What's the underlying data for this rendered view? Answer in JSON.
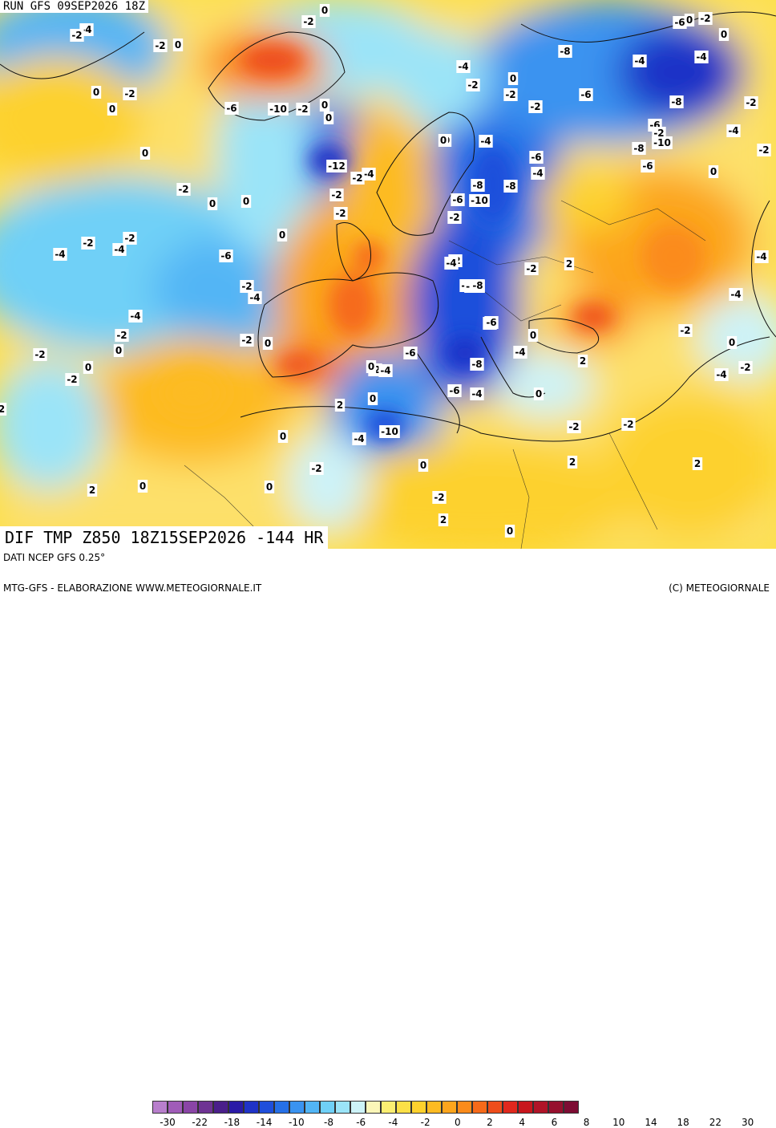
{
  "header": {
    "run_title": "RUN GFS 09SEP2026 18Z",
    "map_title": "DIF TMP Z850 18Z15SEP2026 -144 HR"
  },
  "footer": {
    "source_label": "DATI NCEP GFS 0.25°",
    "credit_left": "MTG-GFS - ELABORAZIONE WWW.METEOGIORNALE.IT",
    "credit_right": "(C) METEOGIORNALE"
  },
  "legend": {
    "colors": [
      "#b87fcc",
      "#a05cb8",
      "#8a45a6",
      "#6e3393",
      "#4a1f8a",
      "#2a1aa6",
      "#1f33c7",
      "#1f4fdb",
      "#2670e6",
      "#3a93f0",
      "#52b5f5",
      "#6fd0f7",
      "#9be4f8",
      "#cdf3f8",
      "#fbf6b8",
      "#fbee72",
      "#fce047",
      "#fdd12d",
      "#fdbb22",
      "#fca51d",
      "#fb8b1a",
      "#f66a1a",
      "#ee4d1b",
      "#e0281d",
      "#c8161d",
      "#b01428",
      "#96102e",
      "#7d0c33"
    ],
    "ticks": [
      "-30",
      "-22",
      "-18",
      "-14",
      "-10",
      "-8",
      "-6",
      "-4",
      "-2",
      "0",
      "2",
      "4",
      "6",
      "8",
      "10",
      "14",
      "18",
      "22",
      "30"
    ]
  },
  "map_labels": [
    {
      "t": "-4"
    },
    {
      "t": "-2"
    },
    {
      "t": "0"
    },
    {
      "t": "-2"
    },
    {
      "t": "0"
    },
    {
      "t": "-2"
    },
    {
      "t": "0"
    },
    {
      "t": "-2"
    },
    {
      "t": "0"
    },
    {
      "t": "0"
    },
    {
      "t": "-2"
    },
    {
      "t": "0"
    },
    {
      "t": "-6"
    },
    {
      "t": "-10"
    },
    {
      "t": "-2"
    },
    {
      "t": "0"
    },
    {
      "t": "0"
    },
    {
      "t": "-12"
    },
    {
      "t": "-4"
    },
    {
      "t": "-2"
    },
    {
      "t": "0"
    },
    {
      "t": "-2"
    },
    {
      "t": "0"
    },
    {
      "t": "0"
    },
    {
      "t": "-2"
    },
    {
      "t": "-2"
    },
    {
      "t": "-4"
    },
    {
      "t": "-2"
    },
    {
      "t": "-4"
    },
    {
      "t": "-6"
    },
    {
      "t": "-2"
    },
    {
      "t": "-4"
    },
    {
      "t": "-4"
    },
    {
      "t": "-2"
    },
    {
      "t": "0"
    },
    {
      "t": "-2"
    },
    {
      "t": "0"
    },
    {
      "t": "-2"
    },
    {
      "t": "2"
    },
    {
      "t": "0"
    },
    {
      "t": "-2"
    },
    {
      "t": "0"
    },
    {
      "t": "-2"
    },
    {
      "t": "-4"
    },
    {
      "t": "-2"
    },
    {
      "t": "0"
    },
    {
      "t": "-2"
    },
    {
      "t": "-4"
    },
    {
      "t": "-2"
    },
    {
      "t": "0"
    },
    {
      "t": "-8"
    },
    {
      "t": "-6"
    },
    {
      "t": "-10"
    },
    {
      "t": "-2"
    },
    {
      "t": "-2"
    },
    {
      "t": "-4"
    },
    {
      "t": "-6"
    },
    {
      "t": "-2"
    },
    {
      "t": "0"
    },
    {
      "t": "2"
    },
    {
      "t": "0"
    },
    {
      "t": "-4"
    },
    {
      "t": "-8"
    },
    {
      "t": "-6"
    },
    {
      "t": "-10"
    },
    {
      "t": "-2"
    },
    {
      "t": "-4"
    },
    {
      "t": "-10"
    },
    {
      "t": "-4"
    },
    {
      "t": "-4"
    },
    {
      "t": "-6"
    },
    {
      "t": "-8"
    },
    {
      "t": "-6"
    },
    {
      "t": "-4"
    },
    {
      "t": "-4"
    },
    {
      "t": "-6"
    },
    {
      "t": "-2"
    },
    {
      "t": "-6"
    },
    {
      "t": "-4"
    },
    {
      "t": "0"
    },
    {
      "t": "2"
    },
    {
      "t": "0"
    },
    {
      "t": "2"
    },
    {
      "t": "-6"
    },
    {
      "t": "-8"
    },
    {
      "t": "-6"
    },
    {
      "t": "-2"
    },
    {
      "t": "-8"
    },
    {
      "t": "-8"
    },
    {
      "t": "-10"
    },
    {
      "t": "-8"
    },
    {
      "t": "-6"
    },
    {
      "t": "0"
    },
    {
      "t": "-4"
    },
    {
      "t": "-2"
    },
    {
      "t": "-2"
    },
    {
      "t": "-4"
    },
    {
      "t": "-4"
    },
    {
      "t": "-2"
    },
    {
      "t": "0"
    },
    {
      "t": "-2"
    },
    {
      "t": "-4"
    },
    {
      "t": "0"
    },
    {
      "t": "-2"
    },
    {
      "t": "-2"
    },
    {
      "t": "0"
    },
    {
      "t": "-2"
    },
    {
      "t": "2"
    },
    {
      "t": "2"
    },
    {
      "t": "0"
    },
    {
      "t": "0"
    },
    {
      "t": "2"
    },
    {
      "t": "2"
    },
    {
      "t": "0"
    },
    {
      "t": "-2"
    },
    {
      "t": "0"
    }
  ]
}
